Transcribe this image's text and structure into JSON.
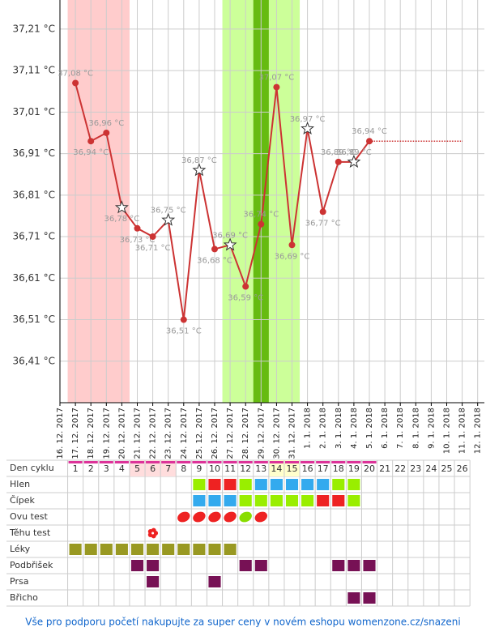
{
  "chart_data": {
    "type": "line",
    "categories": [
      "16. 12. 2017",
      "17. 12. 2017",
      "18. 12. 2017",
      "19. 12. 2017",
      "20. 12. 2017",
      "21. 12. 2017",
      "22. 12. 2017",
      "23. 12. 2017",
      "24. 12. 2017",
      "25. 12. 2017",
      "26. 12. 2017",
      "27. 12. 2017",
      "28. 12. 2017",
      "29. 12. 2017",
      "30. 12. 2017",
      "31. 12. 2017",
      "1. 1. 2018",
      "2. 1. 2018",
      "3. 1. 2018",
      "4. 1. 2018",
      "5. 1. 2018",
      "6. 1. 2018",
      "7. 1. 2018",
      "8. 1. 2018",
      "9. 1. 2018",
      "10. 1. 2018",
      "11. 1. 2018",
      "12. 1. 2018"
    ],
    "values": [
      null,
      37.08,
      36.94,
      36.96,
      36.78,
      36.73,
      36.71,
      36.75,
      36.51,
      36.87,
      36.68,
      36.69,
      36.59,
      36.74,
      37.07,
      36.69,
      36.97,
      36.77,
      36.89,
      36.89,
      36.94,
      null,
      null,
      null,
      null,
      null,
      null,
      null
    ],
    "value_labels": [
      null,
      "37,08 °C",
      "36,94 °C",
      "36,96 °C",
      "36,78 °C",
      "36,73 °C",
      "36,71 °C",
      "36,75 °C",
      "36,51 °C",
      "36,87 °C",
      "36,68 °C",
      "36,69 °C",
      "36,59 °C",
      "36,74 °C",
      "37,07 °C",
      "36,69 °C",
      "36,97 °C",
      "36,77 °C",
      "36,89 °C",
      "36,89 °C",
      "36,94 °C",
      null,
      null,
      null,
      null,
      null,
      null,
      null
    ],
    "point_shapes": [
      null,
      "dot",
      "dot",
      "dot",
      "star",
      "dot",
      "dot",
      "star",
      "dot",
      "star",
      "dot",
      "star",
      "dot",
      "dot",
      "dot",
      "dot",
      "star",
      "dot",
      "dot",
      "star",
      "dot",
      null,
      null,
      null,
      null,
      null,
      null,
      null
    ],
    "color": "#cc3333",
    "ylim": [
      36.31,
      37.28
    ],
    "yticks": [
      {
        "value": 36.41,
        "label": "36,41 °C"
      },
      {
        "value": 36.51,
        "label": "36,51 °C"
      },
      {
        "value": 36.61,
        "label": "36,61 °C"
      },
      {
        "value": 36.71,
        "label": "36,71 °C"
      },
      {
        "value": 36.81,
        "label": "36,81 °C"
      },
      {
        "value": 36.91,
        "label": "36,91 °C"
      },
      {
        "value": 37.01,
        "label": "37,01 °C"
      },
      {
        "value": 37.11,
        "label": "37,11 °C"
      },
      {
        "value": 37.21,
        "label": "37,21 °C"
      }
    ],
    "grid": true,
    "bands": [
      {
        "start": "17. 12. 2017",
        "end": "20. 12. 2017",
        "color": "#ffcccc"
      },
      {
        "start": "27. 12. 2017",
        "end": "31. 12. 2017",
        "color": "#ccff99"
      },
      {
        "start": "29. 12. 2017",
        "end": "29. 12. 2017",
        "color": "#66bb11"
      }
    ]
  },
  "table": {
    "header": "Den cyklu",
    "days": [
      1,
      2,
      3,
      4,
      5,
      6,
      7,
      8,
      9,
      10,
      11,
      12,
      13,
      14,
      15,
      16,
      17,
      18,
      19,
      20,
      21,
      22,
      23,
      24,
      25,
      26
    ],
    "day_backgrounds": [
      null,
      null,
      null,
      null,
      "#ffdddd",
      "#ffdddd",
      "#ffdddd",
      null,
      null,
      null,
      null,
      null,
      null,
      "#ffffcc",
      "#ffffcc",
      null,
      null,
      null,
      null,
      null,
      null,
      null,
      null,
      null,
      null,
      null
    ],
    "rows": [
      {
        "label": "Hlen",
        "shape": "rect",
        "cells": [
          null,
          null,
          null,
          null,
          null,
          null,
          null,
          null,
          "#99ee00",
          "#ee2222",
          "#ee2222",
          "#99ee00",
          "#33aaee",
          "#33aaee",
          "#33aaee",
          "#33aaee",
          "#33aaee",
          "#99ee00",
          "#99ee00",
          null,
          null,
          null,
          null,
          null,
          null,
          null
        ]
      },
      {
        "label": "Čípek",
        "shape": "rect",
        "cells": [
          null,
          null,
          null,
          null,
          null,
          null,
          null,
          null,
          "#33aaee",
          "#33aaee",
          "#33aaee",
          "#99ee00",
          "#99ee00",
          "#99ee00",
          "#99ee00",
          "#99ee00",
          "#ee2222",
          "#ee2222",
          "#99ee00",
          null,
          null,
          null,
          null,
          null,
          null,
          null
        ]
      },
      {
        "label": "Ovu test",
        "shape": "leaf",
        "cells": [
          null,
          null,
          null,
          null,
          null,
          null,
          null,
          "#ee2222",
          "#ee2222",
          "#ee2222",
          "#ee2222",
          "#88dd00",
          "#ee2222",
          null,
          null,
          null,
          null,
          null,
          null,
          null,
          null,
          null,
          null,
          null,
          null,
          null
        ]
      },
      {
        "label": "Těhu test",
        "shape": "flower",
        "cells": [
          null,
          null,
          null,
          null,
          null,
          "#ee2222",
          null,
          null,
          null,
          null,
          null,
          null,
          null,
          null,
          null,
          null,
          null,
          null,
          null,
          null,
          null,
          null,
          null,
          null,
          null,
          null
        ]
      },
      {
        "label": "Léky",
        "shape": "rect",
        "cells": [
          "#999922",
          "#999922",
          "#999922",
          "#999922",
          "#999922",
          "#999922",
          "#999922",
          "#999922",
          "#999922",
          "#999922",
          "#999922",
          null,
          null,
          null,
          null,
          null,
          null,
          null,
          null,
          null,
          null,
          null,
          null,
          null,
          null,
          null
        ]
      },
      {
        "label": "Podbřišek",
        "shape": "rect",
        "cells": [
          null,
          null,
          null,
          null,
          "#771155",
          "#771155",
          null,
          null,
          null,
          null,
          null,
          "#771155",
          "#771155",
          null,
          null,
          null,
          null,
          "#771155",
          "#771155",
          "#771155",
          null,
          null,
          null,
          null,
          null,
          null
        ]
      },
      {
        "label": "Prsa",
        "shape": "rect",
        "cells": [
          null,
          null,
          null,
          null,
          null,
          "#771155",
          null,
          null,
          null,
          "#771155",
          null,
          null,
          null,
          null,
          null,
          null,
          null,
          null,
          null,
          null,
          null,
          null,
          null,
          null,
          null,
          null
        ]
      },
      {
        "label": "Břicho",
        "shape": "rect",
        "cells": [
          null,
          null,
          null,
          null,
          null,
          null,
          null,
          null,
          null,
          null,
          null,
          null,
          null,
          null,
          null,
          null,
          null,
          null,
          "#771155",
          "#771155",
          null,
          null,
          null,
          null,
          null,
          null
        ]
      }
    ]
  },
  "footer": "Vše pro podporu početí nakupujte za super ceny v novém eshopu womenzone.cz/snazeni"
}
